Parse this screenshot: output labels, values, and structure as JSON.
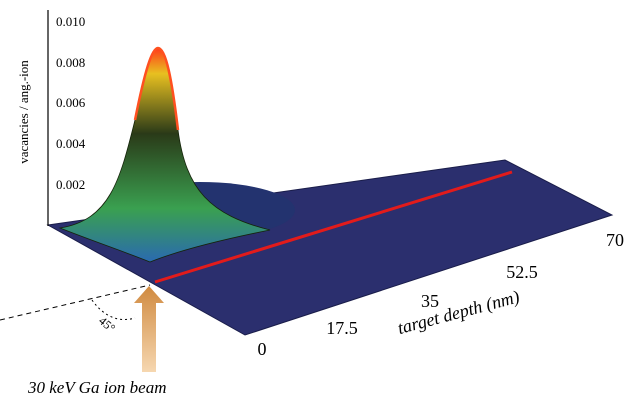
{
  "y_axis": {
    "label": "vacancies / ang.-ion",
    "ticks": [
      "0.010",
      "0.008",
      "0.006",
      "0.004",
      "0.002"
    ]
  },
  "depth_axis": {
    "label": "target depth (nm)",
    "ticks": [
      "0",
      "17.5",
      "35",
      "52.5",
      "70"
    ]
  },
  "angle_label": "45°",
  "beam_label": "30 keV Ga ion beam"
}
